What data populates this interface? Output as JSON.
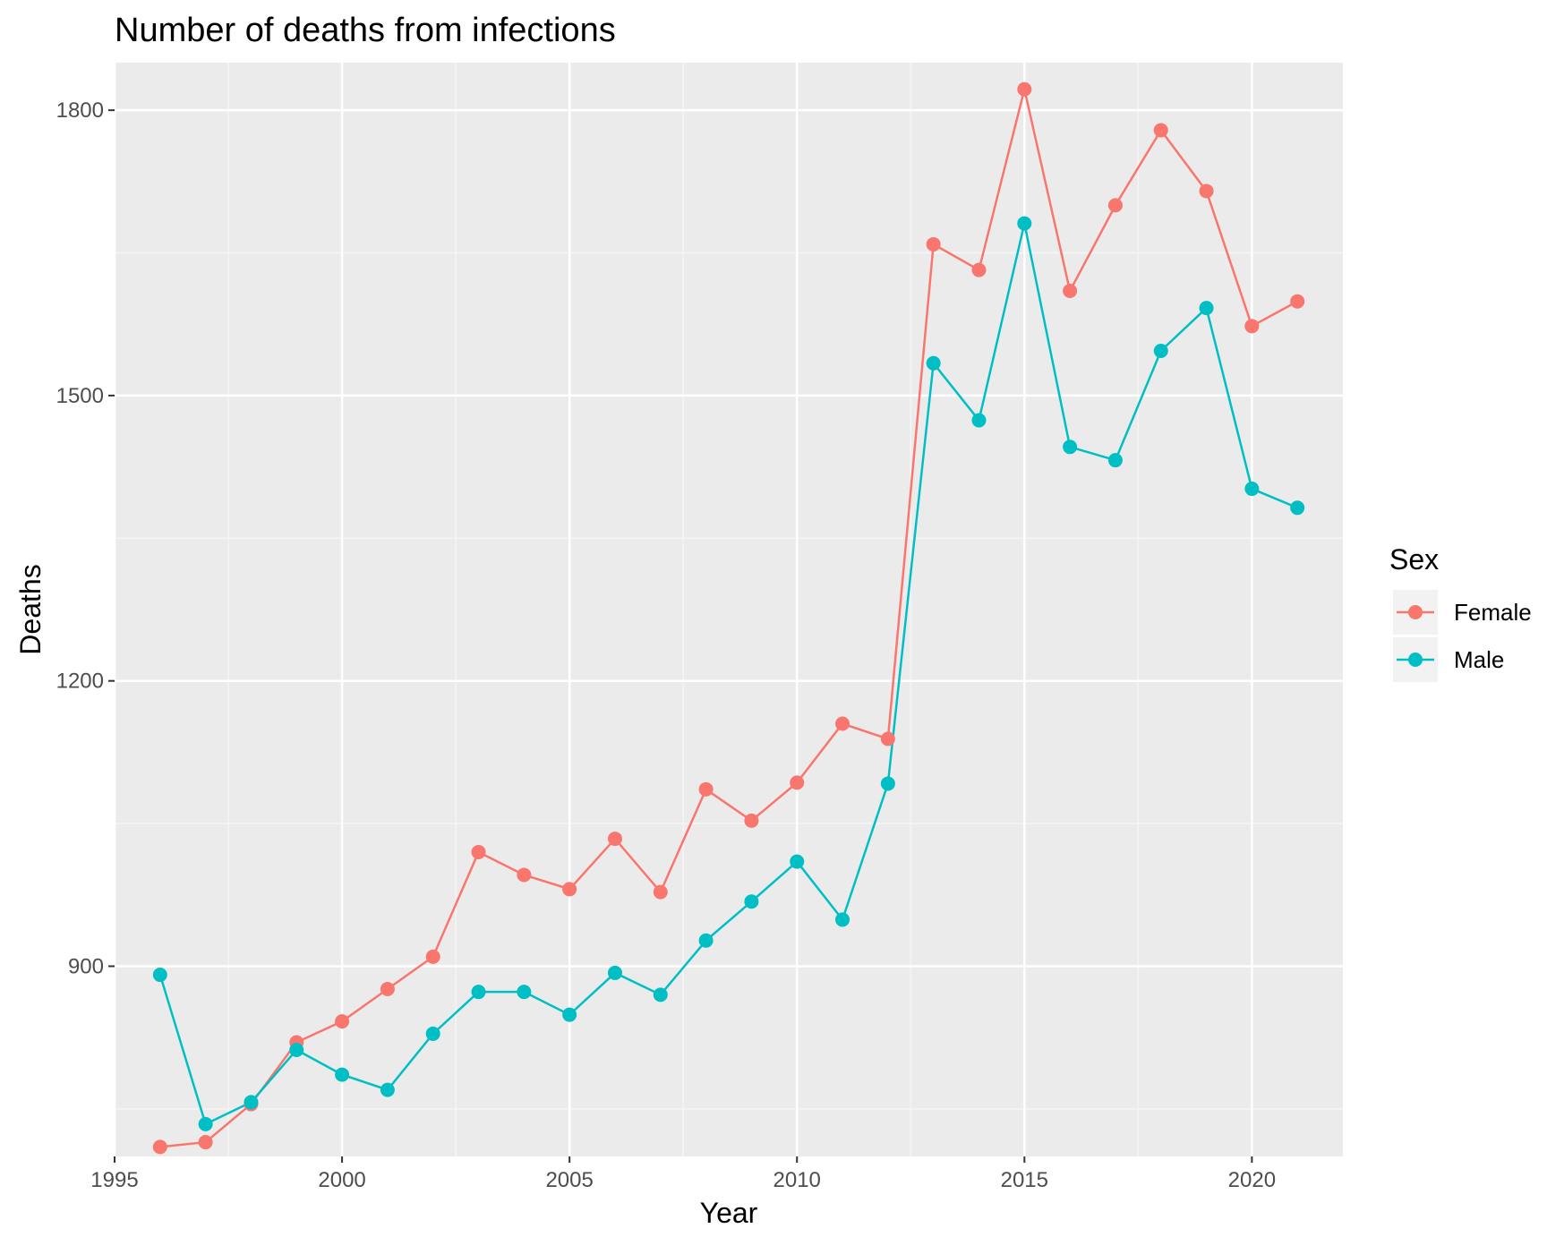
{
  "chart_data": {
    "type": "line",
    "title": "Number of deaths from infections",
    "xlabel": "Year",
    "ylabel": "Deaths",
    "xlim": [
      1995,
      2022
    ],
    "ylim": [
      700,
      1850
    ],
    "x_ticks": [
      1995,
      2000,
      2005,
      2010,
      2015,
      2020
    ],
    "y_ticks": [
      900,
      1200,
      1500,
      1800
    ],
    "y_minor_ticks": [
      750,
      1050,
      1350,
      1650
    ],
    "x_minor_ticks": [
      1997.5,
      2002.5,
      2007.5,
      2012.5,
      2017.5
    ],
    "grid": true,
    "legend": {
      "title": "Sex",
      "position": "right"
    },
    "x": [
      1996,
      1997,
      1998,
      1999,
      2000,
      2001,
      2002,
      2003,
      2004,
      2005,
      2006,
      2007,
      2008,
      2009,
      2010,
      2011,
      2012,
      2013,
      2014,
      2015,
      2016,
      2017,
      2018,
      2019,
      2020,
      2021
    ],
    "series": [
      {
        "name": "Female",
        "color": "#F8766D",
        "values": [
          710,
          715,
          755,
          820,
          842,
          876,
          910,
          1020,
          996,
          981,
          1034,
          978,
          1086,
          1053,
          1093,
          1155,
          1139,
          1659,
          1632,
          1822,
          1610,
          1700,
          1779,
          1715,
          1573,
          1599
        ]
      },
      {
        "name": "Male",
        "color": "#00BFC4",
        "values": [
          891,
          734,
          757,
          812,
          786,
          770,
          829,
          873,
          873,
          849,
          893,
          870,
          927,
          968,
          1010,
          949,
          1092,
          1534,
          1474,
          1681,
          1446,
          1432,
          1547,
          1592,
          1402,
          1382
        ]
      }
    ]
  }
}
